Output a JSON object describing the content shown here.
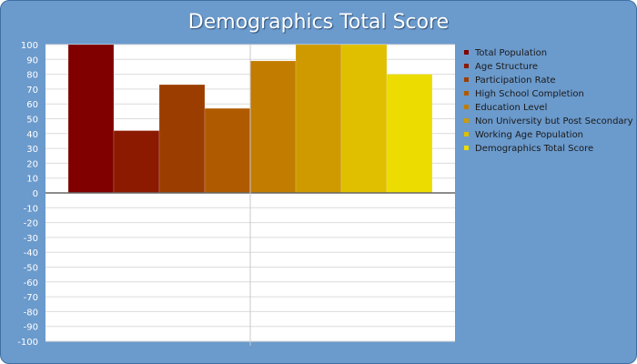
{
  "chart_data": {
    "type": "bar",
    "title": "Demographics Total Score",
    "xlabel": "",
    "ylabel": "",
    "ylim": [
      -100,
      100
    ],
    "ytick_step": 10,
    "grid": true,
    "legend_position": "right",
    "series": [
      {
        "name": "Total Population",
        "value": 100,
        "color": "#800000"
      },
      {
        "name": "Age Structure",
        "value": 42,
        "color": "#8b1a00"
      },
      {
        "name": "Participation Rate",
        "value": 73,
        "color": "#9c3d00"
      },
      {
        "name": "High School Completion",
        "value": 57,
        "color": "#b05a00"
      },
      {
        "name": "Education Level",
        "value": 89,
        "color": "#c27c00"
      },
      {
        "name": "Non University but Post Secondary",
        "value": 100,
        "color": "#cf9a00"
      },
      {
        "name": "Working Age Population",
        "value": 100,
        "color": "#dfbf00"
      },
      {
        "name": "Demographics Total Score",
        "value": 80,
        "color": "#ecdc00"
      }
    ]
  }
}
